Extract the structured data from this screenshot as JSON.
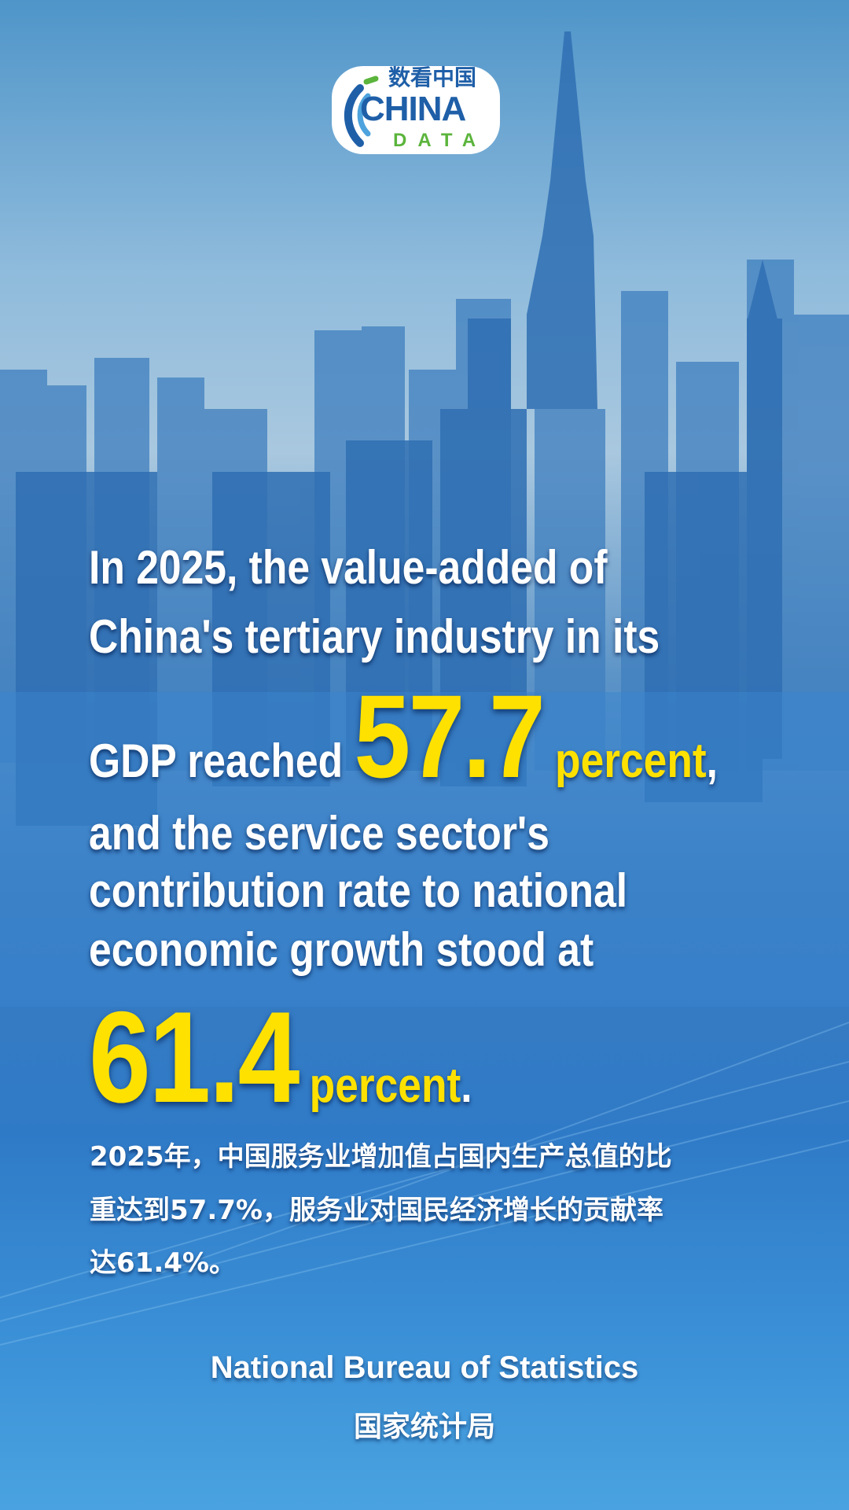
{
  "logo": {
    "cn": "数看中国",
    "line1": "CHINA",
    "line2": "DATA"
  },
  "headline": {
    "line1": "In 2025, the value-added of",
    "line2": "China's tertiary industry in its",
    "line3_prefix": "GDP reached ",
    "value1": "57.7",
    "unit1": " percent",
    "line3_suffix": ",",
    "line4": "and the service sector's",
    "line5": "contribution rate to national",
    "line6": "economic growth stood at",
    "value2": "61.4",
    "unit2": " percent",
    "line7_suffix": "."
  },
  "chinese": {
    "line1": "2025年，中国服务业增加值占国内生产总值的比",
    "line2": "重达到57.7%，服务业对国民经济增长的贡献率",
    "line3": "达61.4%。"
  },
  "source": {
    "en": "National Bureau of Statistics",
    "cn": "国家统计局"
  },
  "colors": {
    "highlight": "#ffe100",
    "text": "#ffffff",
    "logo_blue": "#1f5fa8",
    "logo_green": "#5bb43c"
  }
}
